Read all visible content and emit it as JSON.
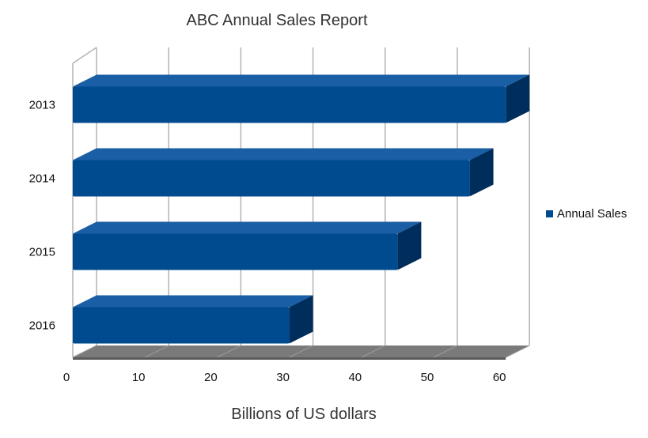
{
  "chart_data": {
    "type": "bar",
    "orientation": "horizontal",
    "style": "3d",
    "title": "ABC Annual Sales Report",
    "xlabel": "Billions of US dollars",
    "ylabel": "",
    "categories": [
      "2013",
      "2014",
      "2015",
      "2016"
    ],
    "series": [
      {
        "name": "Annual Sales",
        "values": [
          60,
          55,
          45,
          30
        ],
        "color": "#004a90"
      }
    ],
    "xlim": [
      0,
      60
    ],
    "xticks": [
      "0",
      "10",
      "20",
      "30",
      "40",
      "50",
      "60"
    ],
    "grid": true,
    "legend": "right"
  }
}
